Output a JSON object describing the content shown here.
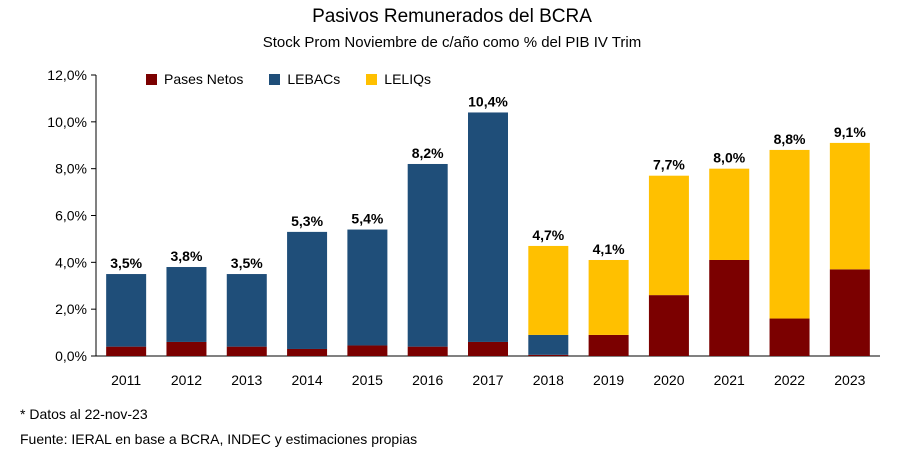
{
  "title": "Pasivos Remunerados del BCRA",
  "subtitle": "Stock Prom Noviembre  de c/año como % del PIB IV Trim",
  "notes": {
    "footnote": "* Datos al 22-nov-23",
    "source": "Fuente: IERAL en base a BCRA, INDEC y estimaciones propias"
  },
  "colors": {
    "pases": "#7B0000",
    "lebacs": "#1F4E79",
    "leliqs": "#FFC000"
  },
  "chart_data": {
    "type": "bar",
    "stacked": true,
    "categories": [
      "2011",
      "2012",
      "2013",
      "2014",
      "2015",
      "2016",
      "2017",
      "2018",
      "2019",
      "2020",
      "2021",
      "2022",
      "2023"
    ],
    "series": [
      {
        "name": "Pases Netos",
        "color": "#7B0000",
        "values": [
          0.4,
          0.6,
          0.4,
          0.3,
          0.45,
          0.4,
          0.6,
          0.05,
          0.9,
          2.6,
          4.1,
          1.6,
          3.7
        ]
      },
      {
        "name": "LEBACs",
        "color": "#1F4E79",
        "values": [
          3.1,
          3.2,
          3.1,
          5.0,
          4.95,
          7.8,
          9.8,
          0.85,
          0,
          0,
          0,
          0,
          0
        ]
      },
      {
        "name": "LELIQs",
        "color": "#FFC000",
        "values": [
          0,
          0,
          0,
          0,
          0,
          0,
          0,
          3.8,
          3.2,
          5.1,
          3.9,
          7.2,
          5.4
        ]
      }
    ],
    "totals": [
      3.5,
      3.8,
      3.5,
      5.3,
      5.4,
      8.2,
      10.4,
      4.7,
      4.1,
      7.7,
      8.0,
      8.8,
      9.1
    ],
    "total_labels": [
      "3,5%",
      "3,8%",
      "3,5%",
      "5,3%",
      "5,4%",
      "8,2%",
      "10,4%",
      "4,7%",
      "4,1%",
      "7,7%",
      "8,0%",
      "8,8%",
      "9,1%"
    ],
    "y_ticks": [
      0,
      2,
      4,
      6,
      8,
      10,
      12
    ],
    "y_tick_labels": [
      "0,0%",
      "2,0%",
      "4,0%",
      "6,0%",
      "8,0%",
      "10,0%",
      "12,0%"
    ],
    "ylim": [
      0,
      12
    ],
    "legend_position": "top-left",
    "grid": false
  }
}
